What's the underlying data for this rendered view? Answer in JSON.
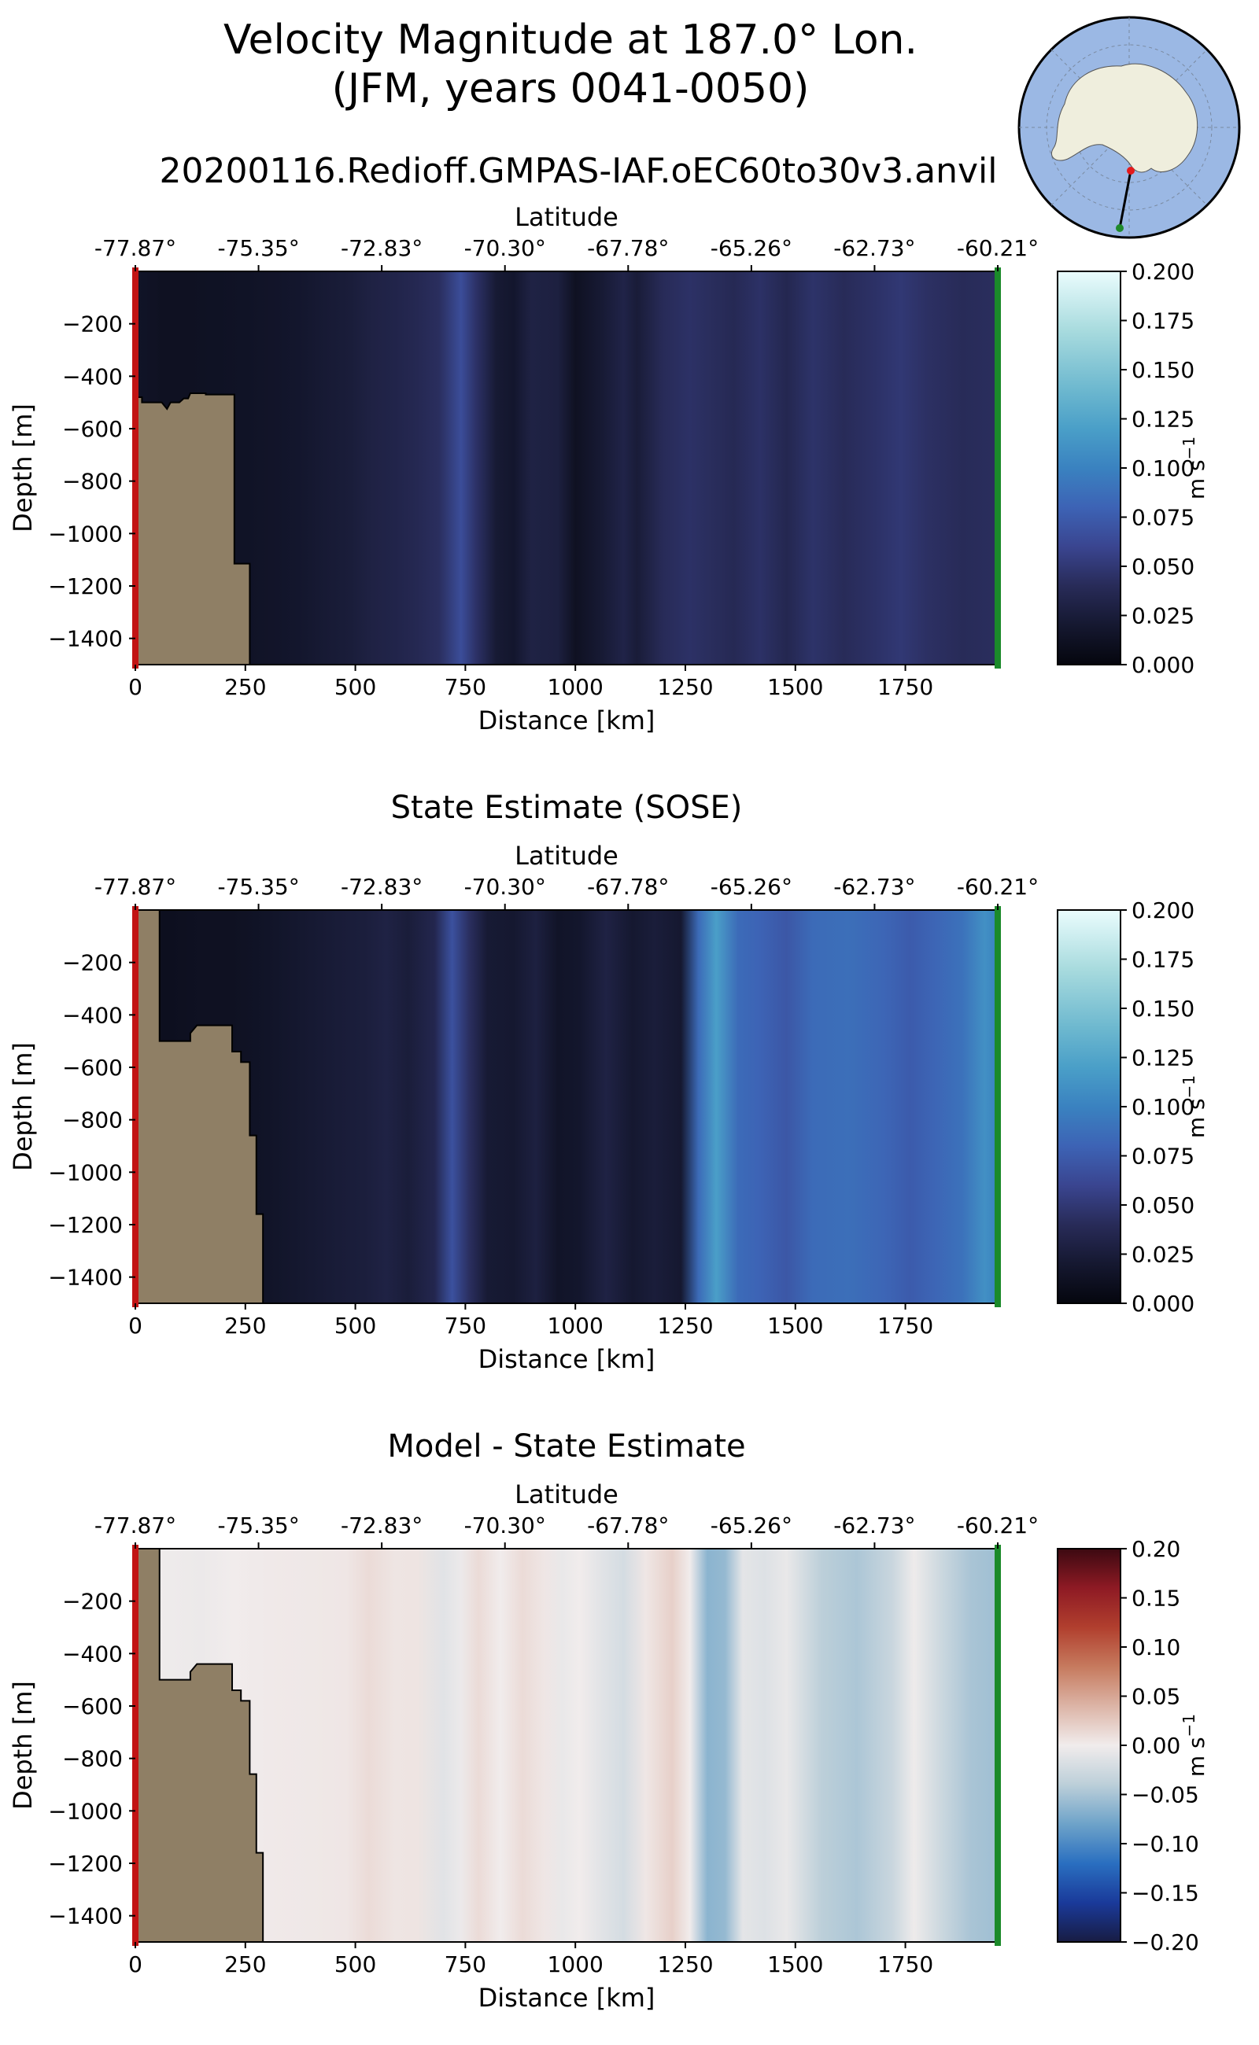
{
  "figure": {
    "title_line1": "Velocity Magnitude at 187.0° Lon.",
    "title_line2": "(JFM, years 0041-0050)",
    "subtitle": "20200116.Redioff.GMPAS-IAF.oEC60to30v3.anvil"
  },
  "inset_map": {
    "description_icon": "antarctica-map-icon",
    "ocean_color": "#9bb8e4",
    "land_color": "#efeedd",
    "start_marker_color": "#e41a1c",
    "end_marker_color": "#1f8a2b"
  },
  "chart_data": [
    {
      "type": "heatmap",
      "title": "",
      "xlabel": "Distance [km]",
      "ylabel": "Depth [m]",
      "top_xlabel": "Latitude",
      "xlim": [
        0,
        1960
      ],
      "ylim": [
        -1500,
        0
      ],
      "x_ticks": [
        0,
        250,
        500,
        750,
        1000,
        1250,
        1500,
        1750
      ],
      "x_tick_labels": [
        "0",
        "250",
        "500",
        "750",
        "1000",
        "1250",
        "1500",
        "1750"
      ],
      "y_ticks": [
        -200,
        -400,
        -600,
        -800,
        -1000,
        -1200,
        -1400
      ],
      "y_tick_labels": [
        "−200",
        "−400",
        "−600",
        "−800",
        "−1000",
        "−1200",
        "−1400"
      ],
      "lat_tick_labels": [
        "-77.87°",
        "-75.35°",
        "-72.83°",
        "-70.30°",
        "-67.78°",
        "-65.26°",
        "-62.73°",
        "-60.21°"
      ],
      "colorbar": {
        "cmap": "ice",
        "vmin": 0.0,
        "vmax": 0.2,
        "ticks": [
          0.0,
          0.025,
          0.05,
          0.075,
          0.1,
          0.125,
          0.15,
          0.175,
          0.2
        ],
        "tick_labels": [
          "0.000",
          "0.025",
          "0.050",
          "0.075",
          "0.100",
          "0.125",
          "0.150",
          "0.175",
          "0.200"
        ],
        "label": "m s",
        "label_exp": "−1"
      },
      "columns": [
        {
          "x": 0,
          "v": 0.015
        },
        {
          "x": 60,
          "v": 0.012
        },
        {
          "x": 120,
          "v": 0.012
        },
        {
          "x": 180,
          "v": 0.013
        },
        {
          "x": 250,
          "v": 0.014
        },
        {
          "x": 310,
          "v": 0.016
        },
        {
          "x": 370,
          "v": 0.018
        },
        {
          "x": 430,
          "v": 0.022
        },
        {
          "x": 490,
          "v": 0.025
        },
        {
          "x": 540,
          "v": 0.03
        },
        {
          "x": 590,
          "v": 0.033
        },
        {
          "x": 640,
          "v": 0.037
        },
        {
          "x": 690,
          "v": 0.042
        },
        {
          "x": 740,
          "v": 0.065
        },
        {
          "x": 775,
          "v": 0.045
        },
        {
          "x": 820,
          "v": 0.022
        },
        {
          "x": 860,
          "v": 0.018
        },
        {
          "x": 900,
          "v": 0.03
        },
        {
          "x": 960,
          "v": 0.028
        },
        {
          "x": 1000,
          "v": 0.012
        },
        {
          "x": 1060,
          "v": 0.022
        },
        {
          "x": 1110,
          "v": 0.032
        },
        {
          "x": 1140,
          "v": 0.024
        },
        {
          "x": 1200,
          "v": 0.04
        },
        {
          "x": 1260,
          "v": 0.045
        },
        {
          "x": 1300,
          "v": 0.042
        },
        {
          "x": 1360,
          "v": 0.038
        },
        {
          "x": 1420,
          "v": 0.045
        },
        {
          "x": 1480,
          "v": 0.036
        },
        {
          "x": 1540,
          "v": 0.046
        },
        {
          "x": 1610,
          "v": 0.04
        },
        {
          "x": 1680,
          "v": 0.045
        },
        {
          "x": 1740,
          "v": 0.05
        },
        {
          "x": 1800,
          "v": 0.044
        },
        {
          "x": 1880,
          "v": 0.04
        },
        {
          "x": 1960,
          "v": 0.042
        }
      ],
      "bathymetry": [
        [
          0,
          -480
        ],
        [
          15,
          -480
        ],
        [
          15,
          -500
        ],
        [
          60,
          -500
        ],
        [
          72,
          -525
        ],
        [
          80,
          -500
        ],
        [
          100,
          -500
        ],
        [
          110,
          -485
        ],
        [
          120,
          -485
        ],
        [
          125,
          -465
        ],
        [
          160,
          -465
        ],
        [
          160,
          -470
        ],
        [
          205,
          -470
        ],
        [
          225,
          -470
        ],
        [
          225,
          -1115
        ],
        [
          260,
          -1115
        ],
        [
          260,
          -1500
        ]
      ]
    },
    {
      "type": "heatmap",
      "title": "State Estimate (SOSE)",
      "xlabel": "Distance [km]",
      "ylabel": "Depth [m]",
      "top_xlabel": "Latitude",
      "xlim": [
        0,
        1960
      ],
      "ylim": [
        -1500,
        0
      ],
      "x_ticks": [
        0,
        250,
        500,
        750,
        1000,
        1250,
        1500,
        1750
      ],
      "x_tick_labels": [
        "0",
        "250",
        "500",
        "750",
        "1000",
        "1250",
        "1500",
        "1750"
      ],
      "y_ticks": [
        -200,
        -400,
        -600,
        -800,
        -1000,
        -1200,
        -1400
      ],
      "y_tick_labels": [
        "−200",
        "−400",
        "−600",
        "−800",
        "−1000",
        "−1200",
        "−1400"
      ],
      "lat_tick_labels": [
        "-77.87°",
        "-75.35°",
        "-72.83°",
        "-70.30°",
        "-67.78°",
        "-65.26°",
        "-62.73°",
        "-60.21°"
      ],
      "colorbar": {
        "cmap": "ice",
        "vmin": 0.0,
        "vmax": 0.2,
        "ticks": [
          0.0,
          0.025,
          0.05,
          0.075,
          0.1,
          0.125,
          0.15,
          0.175,
          0.2
        ],
        "tick_labels": [
          "0.000",
          "0.025",
          "0.050",
          "0.075",
          "0.100",
          "0.125",
          "0.150",
          "0.175",
          "0.200"
        ],
        "label": "m s",
        "label_exp": "−1"
      },
      "columns": [
        {
          "x": 0,
          "v": 0.01
        },
        {
          "x": 80,
          "v": 0.01
        },
        {
          "x": 150,
          "v": 0.012
        },
        {
          "x": 220,
          "v": 0.012
        },
        {
          "x": 300,
          "v": 0.015
        },
        {
          "x": 380,
          "v": 0.02
        },
        {
          "x": 460,
          "v": 0.024
        },
        {
          "x": 520,
          "v": 0.026
        },
        {
          "x": 570,
          "v": 0.03
        },
        {
          "x": 620,
          "v": 0.025
        },
        {
          "x": 680,
          "v": 0.035
        },
        {
          "x": 720,
          "v": 0.068
        },
        {
          "x": 760,
          "v": 0.042
        },
        {
          "x": 800,
          "v": 0.022
        },
        {
          "x": 860,
          "v": 0.02
        },
        {
          "x": 910,
          "v": 0.028
        },
        {
          "x": 960,
          "v": 0.015
        },
        {
          "x": 1010,
          "v": 0.018
        },
        {
          "x": 1070,
          "v": 0.03
        },
        {
          "x": 1130,
          "v": 0.02
        },
        {
          "x": 1180,
          "v": 0.025
        },
        {
          "x": 1240,
          "v": 0.02
        },
        {
          "x": 1280,
          "v": 0.085
        },
        {
          "x": 1320,
          "v": 0.12
        },
        {
          "x": 1370,
          "v": 0.085
        },
        {
          "x": 1420,
          "v": 0.08
        },
        {
          "x": 1480,
          "v": 0.072
        },
        {
          "x": 1540,
          "v": 0.085
        },
        {
          "x": 1620,
          "v": 0.088
        },
        {
          "x": 1700,
          "v": 0.082
        },
        {
          "x": 1760,
          "v": 0.075
        },
        {
          "x": 1820,
          "v": 0.082
        },
        {
          "x": 1880,
          "v": 0.09
        },
        {
          "x": 1930,
          "v": 0.11
        },
        {
          "x": 1960,
          "v": 0.1
        }
      ],
      "bathymetry": [
        [
          0,
          0
        ],
        [
          55,
          0
        ],
        [
          55,
          -500
        ],
        [
          125,
          -500
        ],
        [
          125,
          -470
        ],
        [
          140,
          -440
        ],
        [
          220,
          -440
        ],
        [
          220,
          -540
        ],
        [
          240,
          -540
        ],
        [
          240,
          -580
        ],
        [
          260,
          -580
        ],
        [
          260,
          -860
        ],
        [
          275,
          -860
        ],
        [
          275,
          -1160
        ],
        [
          290,
          -1160
        ],
        [
          290,
          -1500
        ]
      ]
    },
    {
      "type": "heatmap",
      "title": "Model - State Estimate",
      "xlabel": "Distance [km]",
      "ylabel": "Depth [m]",
      "top_xlabel": "Latitude",
      "xlim": [
        0,
        1960
      ],
      "ylim": [
        -1500,
        0
      ],
      "x_ticks": [
        0,
        250,
        500,
        750,
        1000,
        1250,
        1500,
        1750
      ],
      "x_tick_labels": [
        "0",
        "250",
        "500",
        "750",
        "1000",
        "1250",
        "1500",
        "1750"
      ],
      "y_ticks": [
        -200,
        -400,
        -600,
        -800,
        -1000,
        -1200,
        -1400
      ],
      "y_tick_labels": [
        "−200",
        "−400",
        "−600",
        "−800",
        "−1000",
        "−1200",
        "−1400"
      ],
      "lat_tick_labels": [
        "-77.87°",
        "-75.35°",
        "-72.83°",
        "-70.30°",
        "-67.78°",
        "-65.26°",
        "-62.73°",
        "-60.21°"
      ],
      "colorbar": {
        "cmap": "balance",
        "vmin": -0.2,
        "vmax": 0.2,
        "ticks": [
          -0.2,
          -0.15,
          -0.1,
          -0.05,
          0.0,
          0.05,
          0.1,
          0.15,
          0.2
        ],
        "tick_labels": [
          "−0.20",
          "−0.15",
          "−0.10",
          "−0.05",
          "0.00",
          "0.05",
          "0.10",
          "0.15",
          "0.20"
        ],
        "label": "m s",
        "label_exp": "−1"
      },
      "columns": [
        {
          "x": 0,
          "v": 0.0
        },
        {
          "x": 80,
          "v": -0.002
        },
        {
          "x": 150,
          "v": -0.004
        },
        {
          "x": 220,
          "v": 0.0
        },
        {
          "x": 300,
          "v": 0.002
        },
        {
          "x": 400,
          "v": 0.003
        },
        {
          "x": 480,
          "v": 0.004
        },
        {
          "x": 530,
          "v": 0.012
        },
        {
          "x": 590,
          "v": 0.005
        },
        {
          "x": 640,
          "v": 0.006
        },
        {
          "x": 700,
          "v": -0.012
        },
        {
          "x": 740,
          "v": -0.004
        },
        {
          "x": 780,
          "v": 0.012
        },
        {
          "x": 830,
          "v": 0.0
        },
        {
          "x": 880,
          "v": 0.012
        },
        {
          "x": 930,
          "v": 0.004
        },
        {
          "x": 970,
          "v": -0.006
        },
        {
          "x": 1010,
          "v": 0.0
        },
        {
          "x": 1060,
          "v": -0.012
        },
        {
          "x": 1110,
          "v": -0.022
        },
        {
          "x": 1160,
          "v": 0.004
        },
        {
          "x": 1220,
          "v": 0.02
        },
        {
          "x": 1260,
          "v": 0.0
        },
        {
          "x": 1300,
          "v": -0.065
        },
        {
          "x": 1340,
          "v": -0.06
        },
        {
          "x": 1380,
          "v": -0.01
        },
        {
          "x": 1430,
          "v": -0.015
        },
        {
          "x": 1480,
          "v": -0.006
        },
        {
          "x": 1560,
          "v": -0.04
        },
        {
          "x": 1640,
          "v": -0.048
        },
        {
          "x": 1720,
          "v": -0.03
        },
        {
          "x": 1770,
          "v": -0.002
        },
        {
          "x": 1830,
          "v": -0.028
        },
        {
          "x": 1900,
          "v": -0.05
        },
        {
          "x": 1960,
          "v": -0.055
        }
      ],
      "bathymetry": [
        [
          0,
          0
        ],
        [
          55,
          0
        ],
        [
          55,
          -500
        ],
        [
          125,
          -500
        ],
        [
          125,
          -470
        ],
        [
          140,
          -440
        ],
        [
          220,
          -440
        ],
        [
          220,
          -540
        ],
        [
          240,
          -540
        ],
        [
          240,
          -580
        ],
        [
          260,
          -580
        ],
        [
          260,
          -860
        ],
        [
          275,
          -860
        ],
        [
          275,
          -1160
        ],
        [
          290,
          -1160
        ],
        [
          290,
          -1500
        ]
      ]
    }
  ],
  "colors": {
    "land": "#8f7f65",
    "start_line": "#c21414",
    "end_line": "#1b8a2a"
  }
}
